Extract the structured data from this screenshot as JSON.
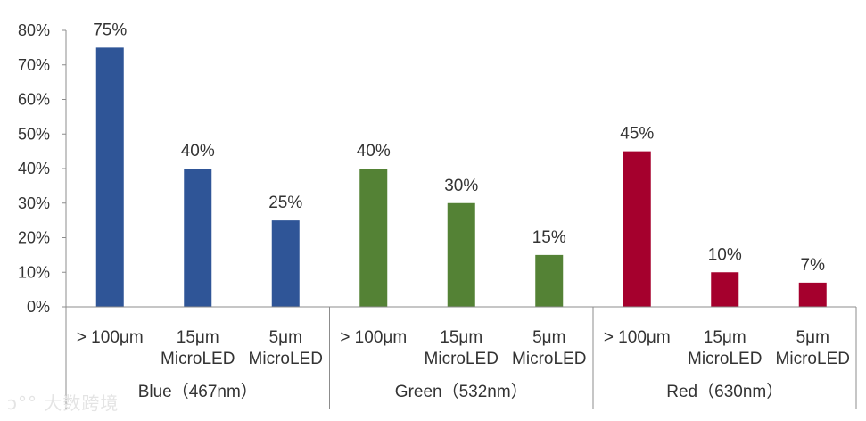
{
  "chart_data": {
    "type": "bar",
    "title": "",
    "xlabel": "",
    "ylabel": "",
    "ylim": [
      0,
      0.8
    ],
    "y_ticks": [
      0,
      0.1,
      0.2,
      0.3,
      0.4,
      0.5,
      0.6,
      0.7,
      0.8
    ],
    "y_tick_labels": [
      "0%",
      "10%",
      "20%",
      "30%",
      "40%",
      "50%",
      "60%",
      "70%",
      "80%"
    ],
    "grid": false,
    "legend": "none",
    "groups": [
      {
        "label": "Blue（467nm）",
        "color": "#2f5597",
        "categories": [
          [
            "> 100μm"
          ],
          [
            "15μm",
            "MicroLED"
          ],
          [
            "5μm",
            "MicroLED"
          ]
        ],
        "values": [
          0.75,
          0.4,
          0.25
        ],
        "value_labels": [
          "75%",
          "40%",
          "25%"
        ]
      },
      {
        "label": "Green（532nm）",
        "color": "#548235",
        "categories": [
          [
            "> 100μm"
          ],
          [
            "15μm",
            "MicroLED"
          ],
          [
            "5μm",
            "MicroLED"
          ]
        ],
        "values": [
          0.4,
          0.3,
          0.15
        ],
        "value_labels": [
          "40%",
          "30%",
          "15%"
        ]
      },
      {
        "label": "Red（630nm）",
        "color": "#a5002d",
        "categories": [
          [
            "> 100μm"
          ],
          [
            "15μm",
            "MicroLED"
          ],
          [
            "5μm",
            "MicroLED"
          ]
        ],
        "values": [
          0.45,
          0.1,
          0.07
        ],
        "value_labels": [
          "45%",
          "10%",
          "7%"
        ]
      }
    ]
  },
  "watermark": {
    "text": "大数跨境",
    "icon": "speech-bubble-logo-icon"
  }
}
